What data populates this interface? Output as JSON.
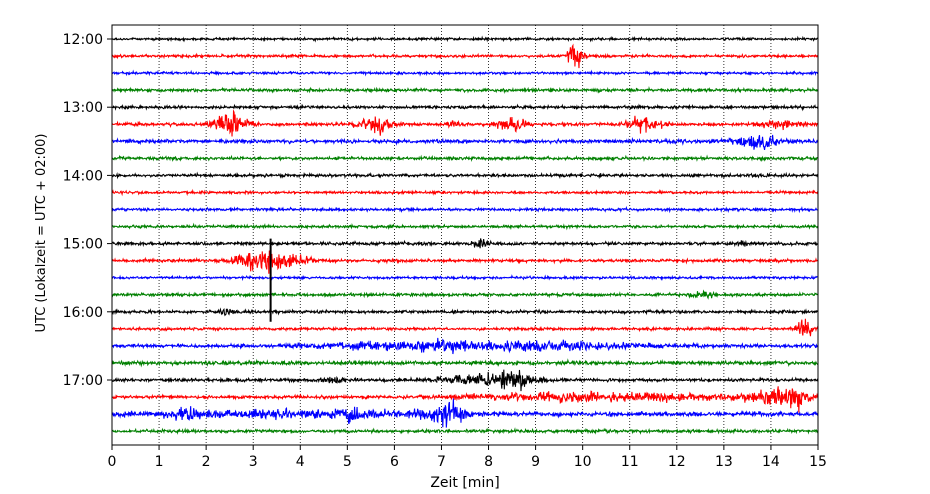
{
  "chart_data": {
    "type": "line",
    "title": "",
    "xlabel": "Zeit  [min]",
    "ylabel": "UTC (Lokalzeit = UTC + 02:00)",
    "xlim": [
      0,
      15
    ],
    "x_ticks": [
      "0",
      "1",
      "2",
      "3",
      "4",
      "5",
      "6",
      "7",
      "8",
      "9",
      "10",
      "11",
      "12",
      "13",
      "14",
      "15"
    ],
    "y_ticks": [
      "12:00",
      "13:00",
      "14:00",
      "15:00",
      "16:00",
      "17:00"
    ],
    "grid": "vertical dotted at each minute",
    "row_interval_minutes": 15,
    "color_cycle": [
      "#000000",
      "#ff0000",
      "#0000ff",
      "#008000"
    ],
    "series": [
      {
        "start": "12:00",
        "color": "#000000",
        "base_amplitude": 1.5,
        "events": []
      },
      {
        "start": "12:15",
        "color": "#ff0000",
        "base_amplitude": 1.6,
        "events": [
          {
            "t": 9.85,
            "amp": 18,
            "width": 0.1
          }
        ]
      },
      {
        "start": "12:30",
        "color": "#0000ff",
        "base_amplitude": 1.5,
        "events": []
      },
      {
        "start": "12:45",
        "color": "#008000",
        "base_amplitude": 1.8,
        "events": []
      },
      {
        "start": "13:00",
        "color": "#000000",
        "base_amplitude": 1.8,
        "events": []
      },
      {
        "start": "13:15",
        "color": "#ff0000",
        "base_amplitude": 1.8,
        "events": [
          {
            "t": 2.5,
            "amp": 15,
            "width": 0.25
          },
          {
            "t": 5.6,
            "amp": 11,
            "width": 0.25
          },
          {
            "t": 7.3,
            "amp": 5,
            "width": 0.1
          },
          {
            "t": 8.5,
            "amp": 9,
            "width": 0.25
          },
          {
            "t": 11.3,
            "amp": 7,
            "width": 0.25
          },
          {
            "t": 14.2,
            "amp": 5,
            "width": 0.3
          }
        ]
      },
      {
        "start": "13:30",
        "color": "#0000ff",
        "base_amplitude": 2.2,
        "events": [
          {
            "t": 13.7,
            "amp": 8,
            "width": 0.3
          }
        ]
      },
      {
        "start": "13:45",
        "color": "#008000",
        "base_amplitude": 1.8,
        "events": []
      },
      {
        "start": "14:00",
        "color": "#000000",
        "base_amplitude": 1.8,
        "events": []
      },
      {
        "start": "14:15",
        "color": "#ff0000",
        "base_amplitude": 1.6,
        "events": []
      },
      {
        "start": "14:30",
        "color": "#0000ff",
        "base_amplitude": 1.6,
        "events": []
      },
      {
        "start": "14:45",
        "color": "#008000",
        "base_amplitude": 1.6,
        "events": []
      },
      {
        "start": "15:00",
        "color": "#000000",
        "base_amplitude": 1.8,
        "events": [
          {
            "t": 7.8,
            "amp": 6,
            "width": 0.12
          },
          {
            "t": 13.4,
            "amp": 3,
            "width": 0.1
          }
        ]
      },
      {
        "start": "15:15",
        "color": "#ff0000",
        "base_amplitude": 1.8,
        "events": [
          {
            "t": 3.3,
            "amp": 14,
            "width": 0.45
          }
        ]
      },
      {
        "start": "15:30",
        "color": "#0000ff",
        "base_amplitude": 1.5,
        "events": []
      },
      {
        "start": "15:45",
        "color": "#008000",
        "base_amplitude": 1.8,
        "events": [
          {
            "t": 12.6,
            "amp": 4,
            "width": 0.15
          }
        ]
      },
      {
        "start": "16:00",
        "color": "#000000",
        "base_amplitude": 1.8,
        "events": [
          {
            "t": 2.4,
            "amp": 4,
            "width": 0.12
          }
        ]
      },
      {
        "start": "16:15",
        "color": "#ff0000",
        "base_amplitude": 1.6,
        "events": [
          {
            "t": 14.7,
            "amp": 16,
            "width": 0.1
          }
        ]
      },
      {
        "start": "16:30",
        "color": "#0000ff",
        "base_amplitude": 2.0,
        "events": [
          {
            "t": 8.5,
            "amp": 5,
            "width": 1.8
          },
          {
            "t": 6.0,
            "amp": 2.5,
            "width": 1.2
          }
        ]
      },
      {
        "start": "16:45",
        "color": "#008000",
        "base_amplitude": 2.2,
        "events": []
      },
      {
        "start": "17:00",
        "color": "#000000",
        "base_amplitude": 1.8,
        "events": [
          {
            "t": 8.0,
            "amp": 7,
            "width": 0.7
          },
          {
            "t": 8.5,
            "amp": 10,
            "width": 0.2
          },
          {
            "t": 4.7,
            "amp": 3,
            "width": 0.15
          }
        ]
      },
      {
        "start": "17:15",
        "color": "#ff0000",
        "base_amplitude": 1.8,
        "events": [
          {
            "t": 10.5,
            "amp": 5,
            "width": 2.0
          },
          {
            "t": 14.0,
            "amp": 8,
            "width": 0.3
          },
          {
            "t": 14.5,
            "amp": 12,
            "width": 0.2
          }
        ]
      },
      {
        "start": "17:30",
        "color": "#0000ff",
        "base_amplitude": 2.5,
        "events": [
          {
            "t": 1.5,
            "amp": 6,
            "width": 0.2
          },
          {
            "t": 3.5,
            "amp": 4,
            "width": 1.5
          },
          {
            "t": 5.0,
            "amp": 7,
            "width": 0.25
          },
          {
            "t": 6.5,
            "amp": 5,
            "width": 0.4
          },
          {
            "t": 7.15,
            "amp": 14,
            "width": 0.2
          }
        ]
      },
      {
        "start": "17:45",
        "color": "#008000",
        "base_amplitude": 1.8,
        "events": []
      }
    ],
    "special_marks": [
      {
        "row_start": "15:15",
        "t": 3.37,
        "color": "#000000",
        "spans_rows": 4,
        "description": "vertical spike"
      }
    ]
  }
}
